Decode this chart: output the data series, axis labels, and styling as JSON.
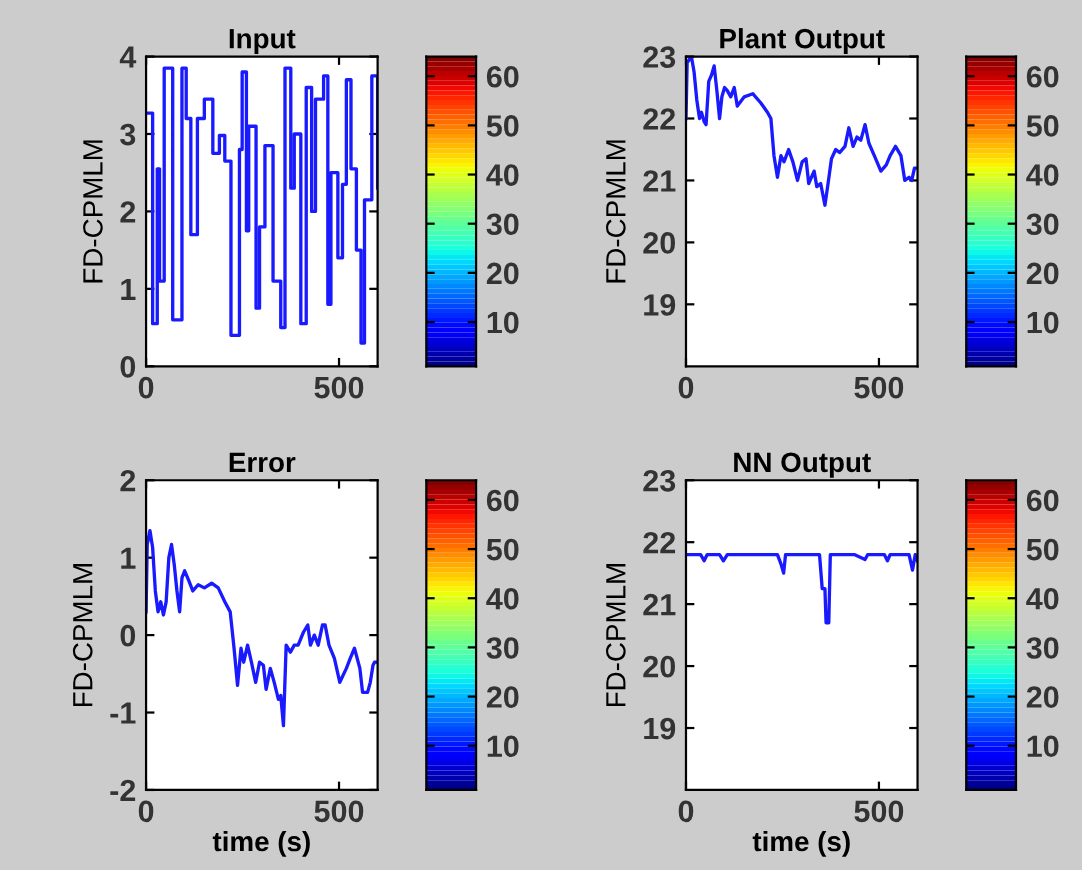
{
  "chart_data": [
    {
      "type": "step",
      "title": "Input",
      "ylabel": "FD-CPMLM",
      "xlim": [
        0,
        600
      ],
      "xticks": [
        0,
        500
      ],
      "ylim": [
        0,
        4
      ],
      "yticks": [
        0,
        1,
        2,
        3,
        4
      ],
      "clim": [
        1,
        64
      ],
      "cticks": [
        10,
        20,
        30,
        40,
        50,
        60
      ],
      "series": [
        {
          "color": "#1a1aff",
          "x": [
            0,
            17,
            29,
            35,
            47,
            69,
            93,
            104,
            116,
            133,
            151,
            173,
            190,
            204,
            220,
            242,
            249,
            260,
            266,
            285,
            294,
            308,
            329,
            349,
            360,
            375,
            384,
            401,
            415,
            429,
            439,
            460,
            471,
            479,
            497,
            509,
            519,
            531,
            545,
            557,
            566,
            585,
            600
          ],
          "values": [
            3.27,
            0.55,
            2.55,
            1.1,
            3.85,
            0.6,
            3.85,
            3.2,
            1.7,
            3.2,
            3.45,
            2.75,
            2.98,
            2.65,
            0.4,
            2.8,
            3.8,
            1.75,
            3.1,
            0.75,
            1.8,
            2.85,
            1.1,
            0.5,
            3.85,
            2.3,
            3.0,
            0.55,
            3.6,
            2.0,
            3.45,
            3.75,
            0.8,
            2.5,
            1.4,
            2.35,
            3.7,
            2.55,
            1.5,
            0.3,
            2.15,
            3.75,
            2.3
          ]
        }
      ]
    },
    {
      "type": "line",
      "title": "Plant Output",
      "ylabel": "FD-CPMLM",
      "xlim": [
        0,
        600
      ],
      "xticks": [
        0,
        500
      ],
      "ylim": [
        18,
        23
      ],
      "yticks": [
        19,
        20,
        21,
        22,
        23
      ],
      "clim": [
        1,
        64
      ],
      "cticks": [
        10,
        20,
        30,
        40,
        50,
        60
      ],
      "series": [
        {
          "color": "#1a1aff",
          "x": [
            0,
            3,
            14,
            21,
            28,
            35,
            40,
            47,
            52,
            59,
            66,
            73,
            80,
            87,
            93,
            100,
            107,
            116,
            125,
            133,
            151,
            173,
            194,
            211,
            220,
            228,
            237,
            246,
            254,
            266,
            277,
            289,
            301,
            311,
            318,
            332,
            339,
            349,
            360,
            367,
            377,
            388,
            398,
            412,
            422,
            433,
            443,
            453,
            464,
            474,
            488,
            505,
            519,
            529,
            543,
            557,
            567,
            578,
            585,
            592,
            600
          ],
          "values": [
            22.0,
            22.9,
            23.0,
            22.75,
            22.3,
            22.0,
            22.1,
            21.95,
            21.9,
            22.6,
            22.7,
            22.85,
            22.45,
            22.0,
            22.35,
            22.5,
            22.45,
            22.35,
            22.5,
            22.2,
            22.35,
            22.4,
            22.25,
            22.1,
            22.0,
            21.4,
            21.05,
            21.4,
            21.3,
            21.5,
            21.3,
            21.0,
            21.3,
            21.35,
            20.95,
            21.15,
            20.9,
            20.95,
            20.6,
            20.9,
            21.35,
            21.5,
            21.45,
            21.55,
            21.85,
            21.55,
            21.7,
            21.65,
            21.9,
            21.6,
            21.4,
            21.15,
            21.25,
            21.4,
            21.55,
            21.4,
            21.0,
            21.05,
            21.0,
            21.2,
            21.2
          ]
        }
      ]
    },
    {
      "type": "line",
      "title": "Error",
      "ylabel": "FD-CPMLM",
      "xlabel": "time (s)",
      "xlim": [
        0,
        600
      ],
      "xticks": [
        0,
        500
      ],
      "ylim": [
        -2,
        2
      ],
      "yticks": [
        -2,
        -1,
        0,
        1,
        2
      ],
      "clim": [
        1,
        64
      ],
      "cticks": [
        10,
        20,
        30,
        40,
        50,
        60
      ],
      "series": [
        {
          "color": "#1a1aff",
          "x": [
            0,
            3,
            10,
            17,
            24,
            31,
            38,
            45,
            52,
            59,
            66,
            73,
            80,
            87,
            93,
            100,
            111,
            121,
            135,
            151,
            170,
            187,
            204,
            218,
            228,
            237,
            246,
            253,
            263,
            273,
            284,
            294,
            304,
            311,
            322,
            332,
            343,
            349,
            356,
            363,
            374,
            384,
            394,
            408,
            419,
            426,
            436,
            446,
            457,
            464,
            474,
            488,
            502,
            519,
            529,
            540,
            554,
            561,
            574,
            581,
            588,
            592,
            600
          ],
          "values": [
            0.3,
            1.17,
            1.35,
            1.13,
            0.57,
            0.3,
            0.43,
            0.26,
            0.43,
            1.0,
            1.17,
            0.91,
            0.57,
            0.3,
            0.74,
            0.83,
            0.7,
            0.57,
            0.65,
            0.61,
            0.67,
            0.61,
            0.43,
            0.3,
            -0.17,
            -0.65,
            -0.17,
            -0.35,
            -0.13,
            -0.35,
            -0.61,
            -0.35,
            -0.39,
            -0.7,
            -0.43,
            -0.61,
            -0.83,
            -0.78,
            -1.17,
            -0.13,
            -0.22,
            -0.13,
            -0.13,
            0.04,
            0.13,
            -0.13,
            0,
            -0.13,
            0.13,
            0.13,
            -0.13,
            -0.3,
            -0.61,
            -0.43,
            -0.3,
            -0.17,
            -0.43,
            -0.74,
            -0.74,
            -0.61,
            -0.39,
            -0.35,
            -0.35
          ]
        }
      ]
    },
    {
      "type": "line",
      "title": "NN Output",
      "ylabel": "FD-CPMLM",
      "xlabel": "time (s)",
      "xlim": [
        0,
        600
      ],
      "xticks": [
        0,
        500
      ],
      "ylim": [
        18,
        23
      ],
      "yticks": [
        19,
        20,
        21,
        22,
        23
      ],
      "clim": [
        1,
        64
      ],
      "cticks": [
        10,
        20,
        30,
        40,
        50,
        60
      ],
      "series": [
        {
          "color": "#1a1aff",
          "x": [
            0,
            38,
            47,
            55,
            87,
            97,
            107,
            237,
            246,
            253,
            258,
            346,
            353,
            360,
            363,
            370,
            374,
            436,
            464,
            471,
            514,
            522,
            529,
            578,
            587,
            594,
            600
          ],
          "values": [
            21.8,
            21.8,
            21.7,
            21.8,
            21.8,
            21.7,
            21.8,
            21.8,
            21.65,
            21.5,
            21.8,
            21.8,
            21.25,
            21.25,
            20.7,
            20.7,
            21.8,
            21.8,
            21.72,
            21.8,
            21.8,
            21.7,
            21.8,
            21.8,
            21.55,
            21.8,
            21.7
          ]
        }
      ]
    }
  ]
}
